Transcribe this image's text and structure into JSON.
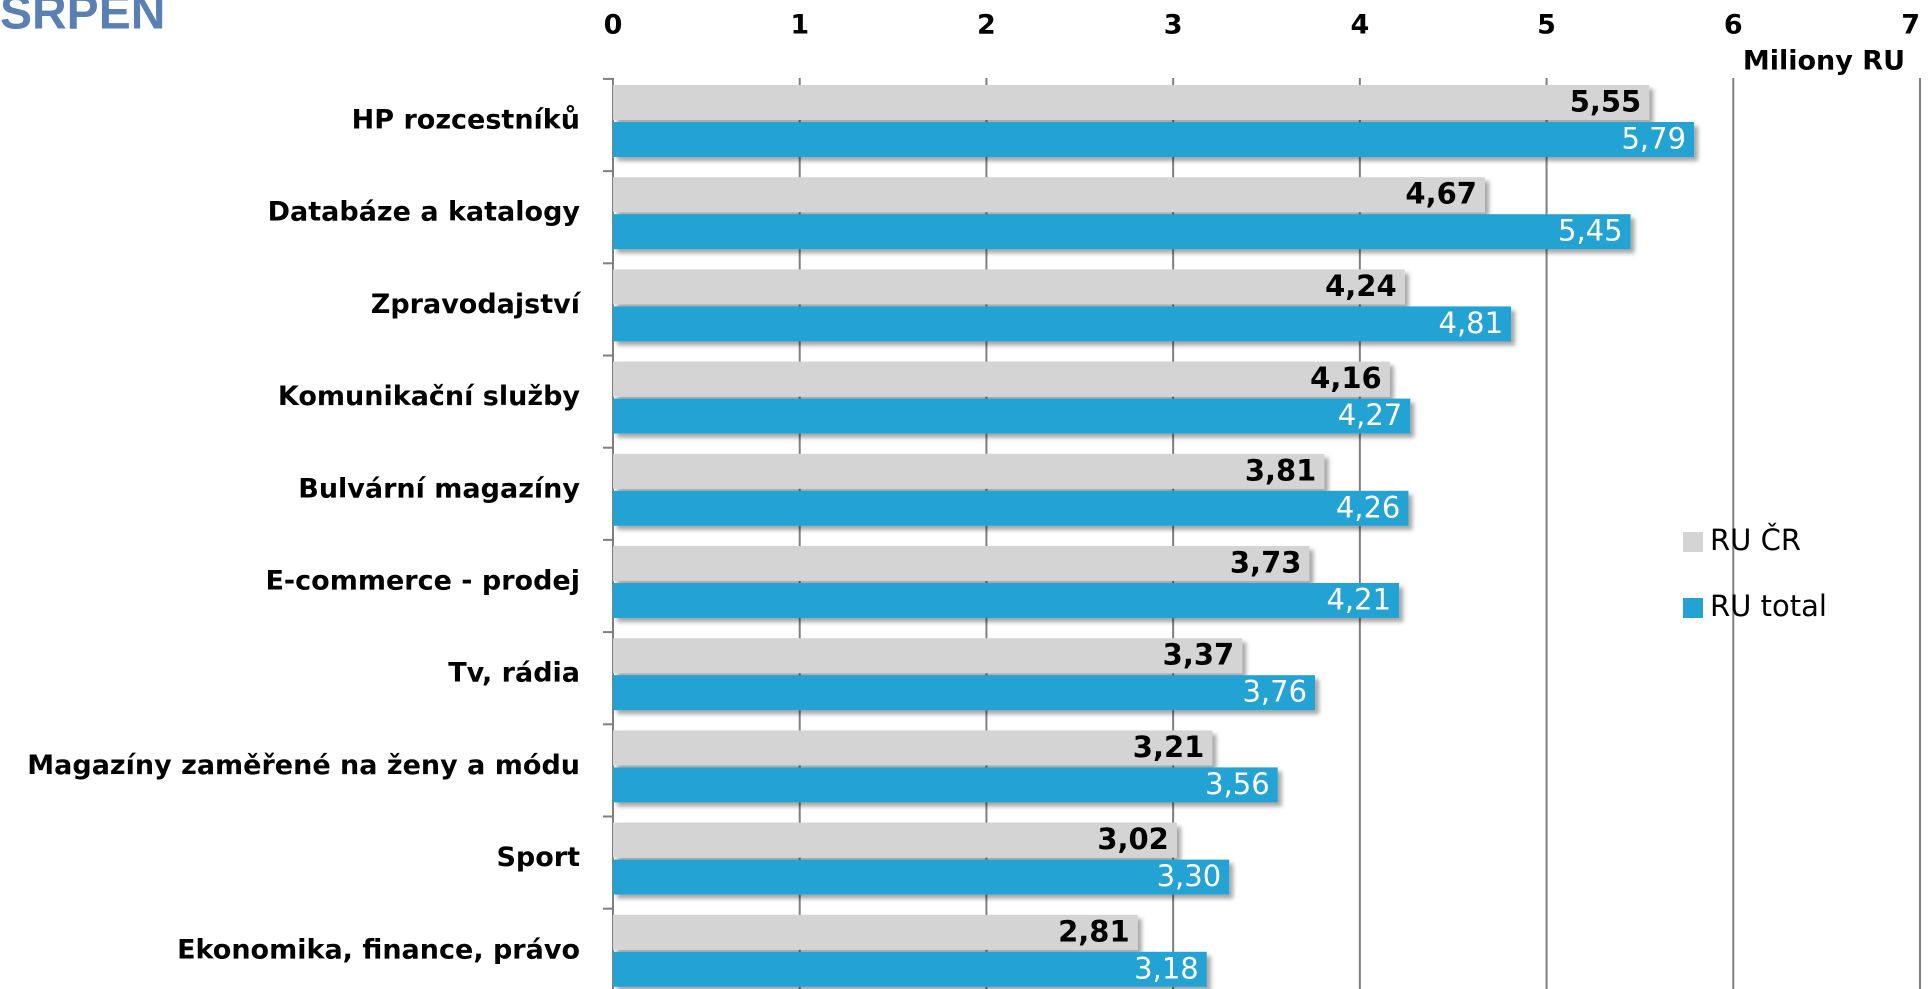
{
  "chart_data": {
    "type": "hbar",
    "title": "SRPEN",
    "x_label": "Miliony RU",
    "categories": [
      "HP rozcestníků",
      "Databáze a katalogy",
      "Zpravodajství",
      "Komunikační služby",
      "Bulvární magazíny",
      "E-commerce - prodej",
      "Tv, rádia",
      "Magazíny zaměřené na ženy a módu",
      "Sport",
      "Ekonomika, finance, právo"
    ],
    "series": [
      {
        "name": "RU ČR",
        "color": "#d4d4d4",
        "values": [
          5.55,
          4.67,
          4.24,
          4.16,
          3.81,
          3.73,
          3.37,
          3.21,
          3.02,
          2.81
        ],
        "value_labels": [
          "5,55",
          "4,67",
          "4,24",
          "4,16",
          "3,81",
          "3,73",
          "3,37",
          "3,21",
          "3,02",
          "2,81"
        ]
      },
      {
        "name": "RU total",
        "color": "#22a3d3",
        "values": [
          5.79,
          5.45,
          4.81,
          4.27,
          4.26,
          4.21,
          3.76,
          3.56,
          3.3,
          3.18
        ],
        "value_labels": [
          "5,79",
          "5,45",
          "4,81",
          "4,27",
          "4,26",
          "4,21",
          "3,76",
          "3,56",
          "3,30",
          "3,18"
        ]
      }
    ],
    "xlim": [
      0,
      7
    ],
    "xticks": [
      0,
      1,
      2,
      3,
      4,
      5,
      6,
      7
    ],
    "grid": true,
    "legend": "right"
  }
}
